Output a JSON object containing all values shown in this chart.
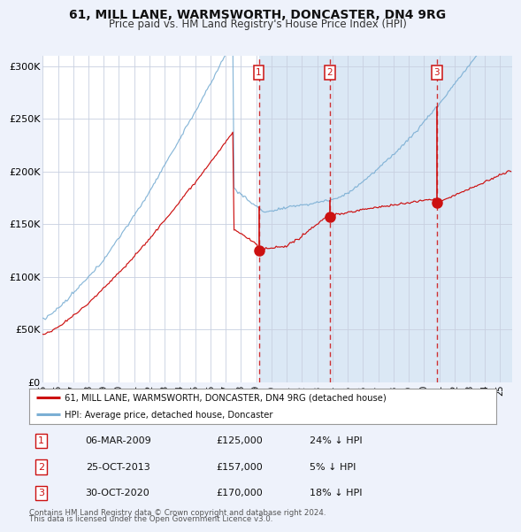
{
  "title": "61, MILL LANE, WARMSWORTH, DONCASTER, DN4 9RG",
  "subtitle": "Price paid vs. HM Land Registry's House Price Index (HPI)",
  "title_fontsize": 10,
  "subtitle_fontsize": 8.5,
  "ylabel_ticks": [
    "£0",
    "£50K",
    "£100K",
    "£150K",
    "£200K",
    "£250K",
    "£300K"
  ],
  "ytick_values": [
    0,
    50000,
    100000,
    150000,
    200000,
    250000,
    300000
  ],
  "ylim": [
    0,
    310000
  ],
  "xlim_start": 1995.0,
  "xlim_end": 2025.8,
  "background_color": "#eef2fb",
  "plot_bg_color": "#ffffff",
  "grid_color": "#c8d0e0",
  "hpi_line_color": "#7bafd4",
  "price_line_color": "#cc1111",
  "shade_color": "#dbe8f5",
  "dashed_line_color": "#cc1111",
  "transactions": [
    {
      "label": "1",
      "date_float": 2009.17,
      "price": 125000,
      "note": "06-MAR-2009",
      "pct": "24% ↓ HPI"
    },
    {
      "label": "2",
      "date_float": 2013.82,
      "price": 157000,
      "note": "25-OCT-2013",
      "pct": "5% ↓ HPI"
    },
    {
      "label": "3",
      "date_float": 2020.83,
      "price": 170000,
      "note": "30-OCT-2020",
      "pct": "18% ↓ HPI"
    }
  ],
  "legend_entries": [
    "61, MILL LANE, WARMSWORTH, DONCASTER, DN4 9RG (detached house)",
    "HPI: Average price, detached house, Doncaster"
  ],
  "footer_lines": [
    "Contains HM Land Registry data © Crown copyright and database right 2024.",
    "This data is licensed under the Open Government Licence v3.0."
  ]
}
